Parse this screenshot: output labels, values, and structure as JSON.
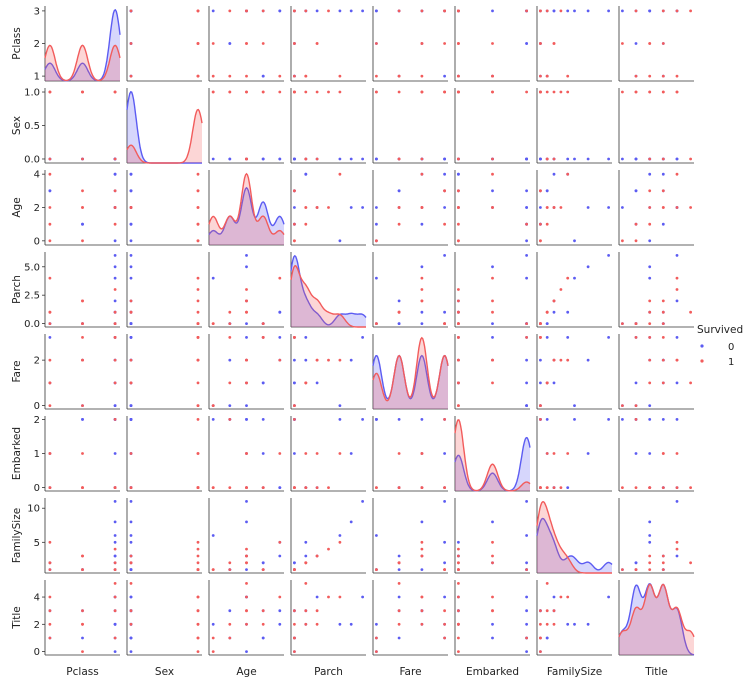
{
  "chart_data": {
    "type": "scatter",
    "kind": "pairplot",
    "variables": [
      "Pclass",
      "Sex",
      "Age",
      "Parch",
      "Fare",
      "Embarked",
      "FamilySize",
      "Title"
    ],
    "ranges": {
      "Pclass": [
        0.85,
        3.15
      ],
      "Sex": [
        -0.06,
        1.06
      ],
      "Age": [
        -0.25,
        4.25
      ],
      "Parch": [
        -0.3,
        6.3
      ],
      "Fare": [
        -0.15,
        3.15
      ],
      "Embarked": [
        -0.1,
        2.1
      ],
      "FamilySize": [
        0.5,
        11.5
      ],
      "Title": [
        -0.25,
        5.25
      ]
    },
    "ticks": {
      "Pclass": [
        1,
        2,
        3
      ],
      "Sex": [
        0.0,
        0.5,
        1.0
      ],
      "Age": [
        0,
        2,
        4
      ],
      "Parch": [
        0.0,
        2.5,
        5.0
      ],
      "Fare": [
        0,
        2
      ],
      "Embarked": [
        0,
        1,
        2
      ],
      "FamilySize": [
        5,
        10
      ],
      "Title": [
        0,
        2,
        4
      ]
    },
    "tick_labels": {
      "Pclass": [
        "1",
        "2",
        "3"
      ],
      "Sex": [
        "0.0",
        "0.5",
        "1.0"
      ],
      "Age": [
        "0",
        "2",
        "4"
      ],
      "Parch": [
        "0.0",
        "2.5",
        "5.0"
      ],
      "Fare": [
        "0",
        "2"
      ],
      "Embarked": [
        "0",
        "1",
        "2"
      ],
      "FamilySize": [
        "5",
        "10"
      ],
      "Title": [
        "0",
        "2",
        "4"
      ]
    },
    "legend": {
      "title": "Survived",
      "placement": "right",
      "entries": [
        {
          "label": "0",
          "color": "#5c5cf2"
        },
        {
          "label": "1",
          "color": "#f25c5c"
        }
      ]
    },
    "series": [
      {
        "name": "0",
        "color": "#5c5cf2",
        "values": {
          "Pclass": [
            3,
            3,
            3,
            2,
            3,
            1,
            3,
            3,
            3,
            2,
            3,
            1
          ],
          "Sex": [
            0,
            0,
            0,
            0,
            0,
            0,
            0,
            0,
            0,
            0,
            0,
            0
          ],
          "Age": [
            2,
            3,
            4,
            1,
            2,
            3,
            0,
            4,
            2,
            1,
            2,
            3
          ],
          "Parch": [
            0,
            0,
            1,
            0,
            2,
            0,
            4,
            1,
            6,
            0,
            5,
            0
          ],
          "Fare": [
            0,
            1,
            3,
            2,
            1,
            3,
            0,
            2,
            3,
            0,
            2,
            1
          ],
          "Embarked": [
            2,
            2,
            0,
            2,
            0,
            1,
            2,
            0,
            2,
            2,
            1,
            0
          ],
          "FamilySize": [
            1,
            2,
            5,
            1,
            3,
            2,
            6,
            3,
            11,
            1,
            8,
            1
          ],
          "Title": [
            0,
            1,
            2,
            3,
            4,
            1,
            2,
            3,
            4,
            1,
            2,
            3
          ]
        }
      },
      {
        "name": "1",
        "color": "#f25c5c",
        "values": {
          "Pclass": [
            1,
            1,
            2,
            2,
            3,
            3,
            1,
            2,
            3,
            1,
            3,
            2
          ],
          "Sex": [
            1,
            1,
            1,
            1,
            1,
            1,
            0,
            0,
            1,
            1,
            0,
            1
          ],
          "Age": [
            0,
            1,
            2,
            3,
            2,
            1,
            2,
            2,
            3,
            4,
            2,
            0
          ],
          "Parch": [
            0,
            1,
            2,
            0,
            3,
            0,
            1,
            2,
            0,
            4,
            1,
            0
          ],
          "Fare": [
            0,
            1,
            2,
            3,
            2,
            3,
            1,
            2,
            3,
            2,
            1,
            0
          ],
          "Embarked": [
            0,
            0,
            1,
            0,
            0,
            2,
            1,
            0,
            0,
            1,
            0,
            0
          ],
          "FamilySize": [
            1,
            2,
            3,
            1,
            4,
            1,
            2,
            3,
            1,
            5,
            2,
            1
          ],
          "Title": [
            1,
            2,
            3,
            2,
            4,
            1,
            3,
            2,
            3,
            4,
            5,
            0
          ]
        }
      }
    ],
    "diagonal": "kde",
    "grid": false
  }
}
